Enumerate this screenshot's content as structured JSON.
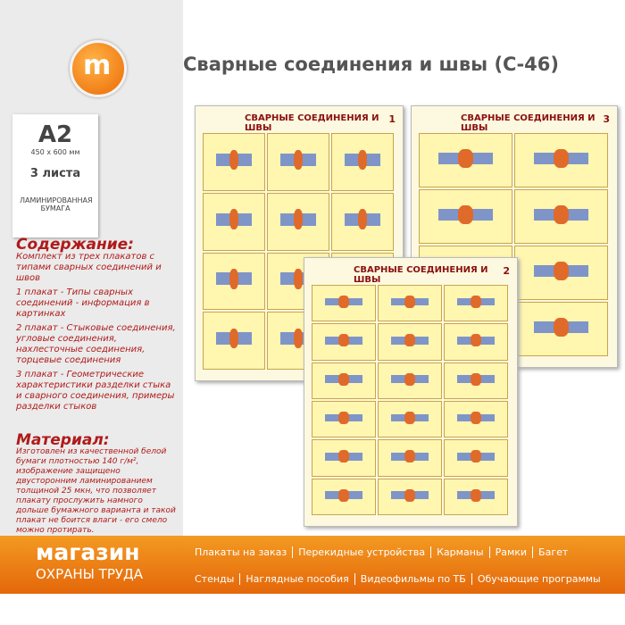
{
  "header": {
    "title": "Сварные соединения и швы (С-46)"
  },
  "spec": {
    "format": "A2",
    "size": "450 x 600 мм",
    "sheets": "3 листа",
    "paper": "ЛАМИНИРОВАННАЯ БУМАГА"
  },
  "contents": {
    "heading": "Содержание:",
    "intro": "Комплект из трех плакатов с типами сварных соединений и швов",
    "items": [
      "1 плакат - Типы сварных соединений - информация в картинках",
      "2 плакат - Стыковые соединения, угловые соединения, нахлесточные соединения, торцевые соединения",
      "3 плакат - Геометрические характеристики разделки стыка и сварного соединения, примеры разделки стыков"
    ]
  },
  "material": {
    "heading": "Материал:",
    "text": "Изготовлен из качественной белой бумаги плотностью 140 г/м², изображение защищено двусторонним ламинированием толщиной 25 мкн, что позволяет плакату прослужить намного дольше бумажного варианта и такой плакат не боится влаги - его смело можно протирать."
  },
  "posters": [
    {
      "title": "СВАРНЫЕ СОЕДИНЕНИЯ И ШВЫ",
      "number": "1"
    },
    {
      "title": "СВАРНЫЕ СОЕДИНЕНИЯ И ШВЫ",
      "number": "3"
    },
    {
      "title": "СВАРНЫЕ СОЕДИНЕНИЯ И ШВЫ",
      "number": "2"
    }
  ],
  "footer": {
    "brand": "магазин",
    "brand_sub": "ОХРАНЫ ТРУДА",
    "links": [
      [
        "Плакаты на заказ",
        "Перекидные устройства",
        "Карманы",
        "Рамки",
        "Багет"
      ],
      [
        "Стенды",
        "Наглядные пособия",
        "Видеофильмы по ТБ",
        "Обучающие программы"
      ]
    ]
  }
}
